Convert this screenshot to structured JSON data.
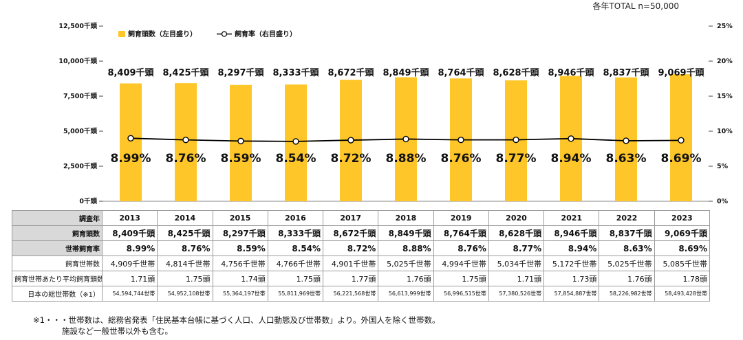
{
  "total_note": "各年TOTAL n=50,000",
  "chart_data": {
    "type": "bar",
    "categories": [
      "2013",
      "2014",
      "2015",
      "2016",
      "2017",
      "2018",
      "2019",
      "2020",
      "2021",
      "2022",
      "2023"
    ],
    "series": [
      {
        "name": "飼育頭数（左目盛り）",
        "type": "bar",
        "axis": "left",
        "color": "#FFC629",
        "values": [
          8409,
          8425,
          8297,
          8333,
          8672,
          8849,
          8764,
          8628,
          8946,
          8837,
          9069
        ],
        "labels": [
          "8,409千頭",
          "8,425千頭",
          "8,297千頭",
          "8,333千頭",
          "8,672千頭",
          "8,849千頭",
          "8,764千頭",
          "8,628千頭",
          "8,946千頭",
          "8,837千頭",
          "9,069千頭"
        ]
      },
      {
        "name": "飼育率（右目盛り）",
        "type": "line",
        "axis": "right",
        "color": "#000000",
        "values": [
          8.99,
          8.76,
          8.59,
          8.54,
          8.72,
          8.88,
          8.76,
          8.77,
          8.94,
          8.63,
          8.69
        ],
        "labels": [
          "8.99%",
          "8.76%",
          "8.59%",
          "8.54%",
          "8.72%",
          "8.88%",
          "8.76%",
          "8.77%",
          "8.94%",
          "8.63%",
          "8.69%"
        ]
      }
    ],
    "ylim_left": [
      0,
      12500
    ],
    "ylim_right": [
      0,
      25
    ],
    "left_ticks": [
      "0千頭",
      "2,500千頭",
      "5,000千頭",
      "7,500千頭",
      "10,000千頭",
      "12,500千頭"
    ],
    "right_ticks": [
      "0%",
      "5%",
      "10%",
      "15%",
      "20%",
      "25%"
    ],
    "legend_position": "top-left",
    "grid": false
  },
  "table": {
    "header_label": "調査年",
    "years": [
      "2013",
      "2014",
      "2015",
      "2016",
      "2017",
      "2018",
      "2019",
      "2020",
      "2021",
      "2022",
      "2023"
    ],
    "rows": [
      {
        "label": "飼育頭数",
        "style": "bold-row",
        "cells": [
          "8,409千頭",
          "8,425千頭",
          "8,297千頭",
          "8,333千頭",
          "8,672千頭",
          "8,849千頭",
          "8,764千頭",
          "8,628千頭",
          "8,946千頭",
          "8,837千頭",
          "9,069千頭"
        ]
      },
      {
        "label": "世帯飼育率",
        "style": "bold-row",
        "cells": [
          "8.99%",
          "8.76%",
          "8.59%",
          "8.54%",
          "8.72%",
          "8.88%",
          "8.76%",
          "8.77%",
          "8.94%",
          "8.63%",
          "8.69%"
        ]
      },
      {
        "label": "飼育世帯数",
        "style": "normal-row",
        "cells": [
          "4,909千世帯",
          "4,814千世帯",
          "4,756千世帯",
          "4,766千世帯",
          "4,901千世帯",
          "5,025千世帯",
          "4,994千世帯",
          "5,034千世帯",
          "5,172千世帯",
          "5,025千世帯",
          "5,085千世帯"
        ]
      },
      {
        "label": "飼育世帯あたり平均飼育頭数",
        "style": "normal-row",
        "cells": [
          "1.71頭",
          "1.75頭",
          "1.74頭",
          "1.75頭",
          "1.77頭",
          "1.76頭",
          "1.75頭",
          "1.71頭",
          "1.73頭",
          "1.76頭",
          "1.78頭"
        ]
      },
      {
        "label": "日本の総世帯数（※1）",
        "style": "small-row",
        "cells": [
          "54,594,744世帯",
          "54,952,108世帯",
          "55,364,197世帯",
          "55,811,969世帯",
          "56,221,568世帯",
          "56,613,999世帯",
          "56,996,515世帯",
          "57,380,526世帯",
          "57,854,887世帯",
          "58,226,982世帯",
          "58,493,428世帯"
        ]
      }
    ]
  },
  "footnote": {
    "line1": "※1・・・世帯数は、総務省発表「住民基本台帳に基づく人口、人口動態及び世帯数」より。外国人を除く世帯数。",
    "line2": "施設など一般世帯以外も含む。"
  }
}
